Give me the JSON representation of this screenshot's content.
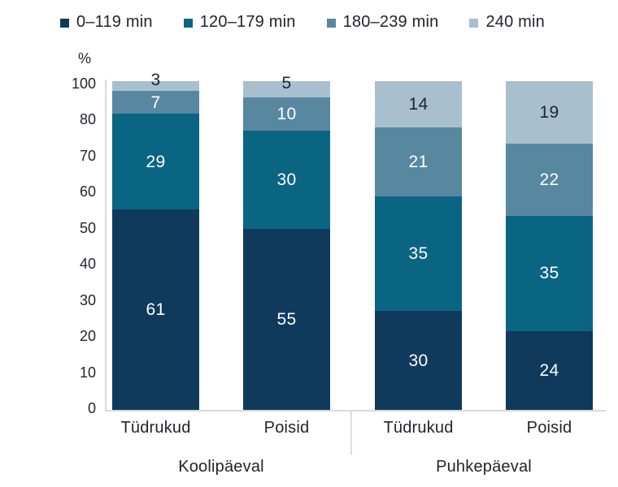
{
  "chart_data": {
    "type": "stacked_bar",
    "orientation": "vertical",
    "unit_label": "%",
    "legend_position": "top",
    "grid": false,
    "legend": [
      "0–119 min",
      "120–179 min",
      "180–239 min",
      "240 min"
    ],
    "series_colors": [
      "#0f3a5c",
      "#0a6583",
      "#5887a0",
      "#a8c0ce"
    ],
    "y_axis": {
      "range": [
        0,
        100
      ],
      "tick_labels": [
        "100",
        "80",
        "70",
        "60",
        "50",
        "40",
        "30",
        "20",
        "10",
        "0"
      ]
    },
    "groups": [
      {
        "label": "Koolipäeval",
        "bars": [
          {
            "label": "Tüdrukud",
            "values": [
              61,
              29,
              7,
              3
            ]
          },
          {
            "label": "Poisid",
            "values": [
              55,
              30,
              10,
              5
            ]
          }
        ]
      },
      {
        "label": "Puhkepäeval",
        "bars": [
          {
            "label": "Tüdrukud",
            "values": [
              30,
              35,
              21,
              14
            ]
          },
          {
            "label": "Poisid",
            "values": [
              24,
              35,
              22,
              19
            ]
          }
        ]
      }
    ],
    "value_label_colors": {
      "on_dark": "#ffffff",
      "on_light": "#1a2533"
    },
    "axis_line_color": "#d9d9d9",
    "text_color": "#23232e"
  }
}
